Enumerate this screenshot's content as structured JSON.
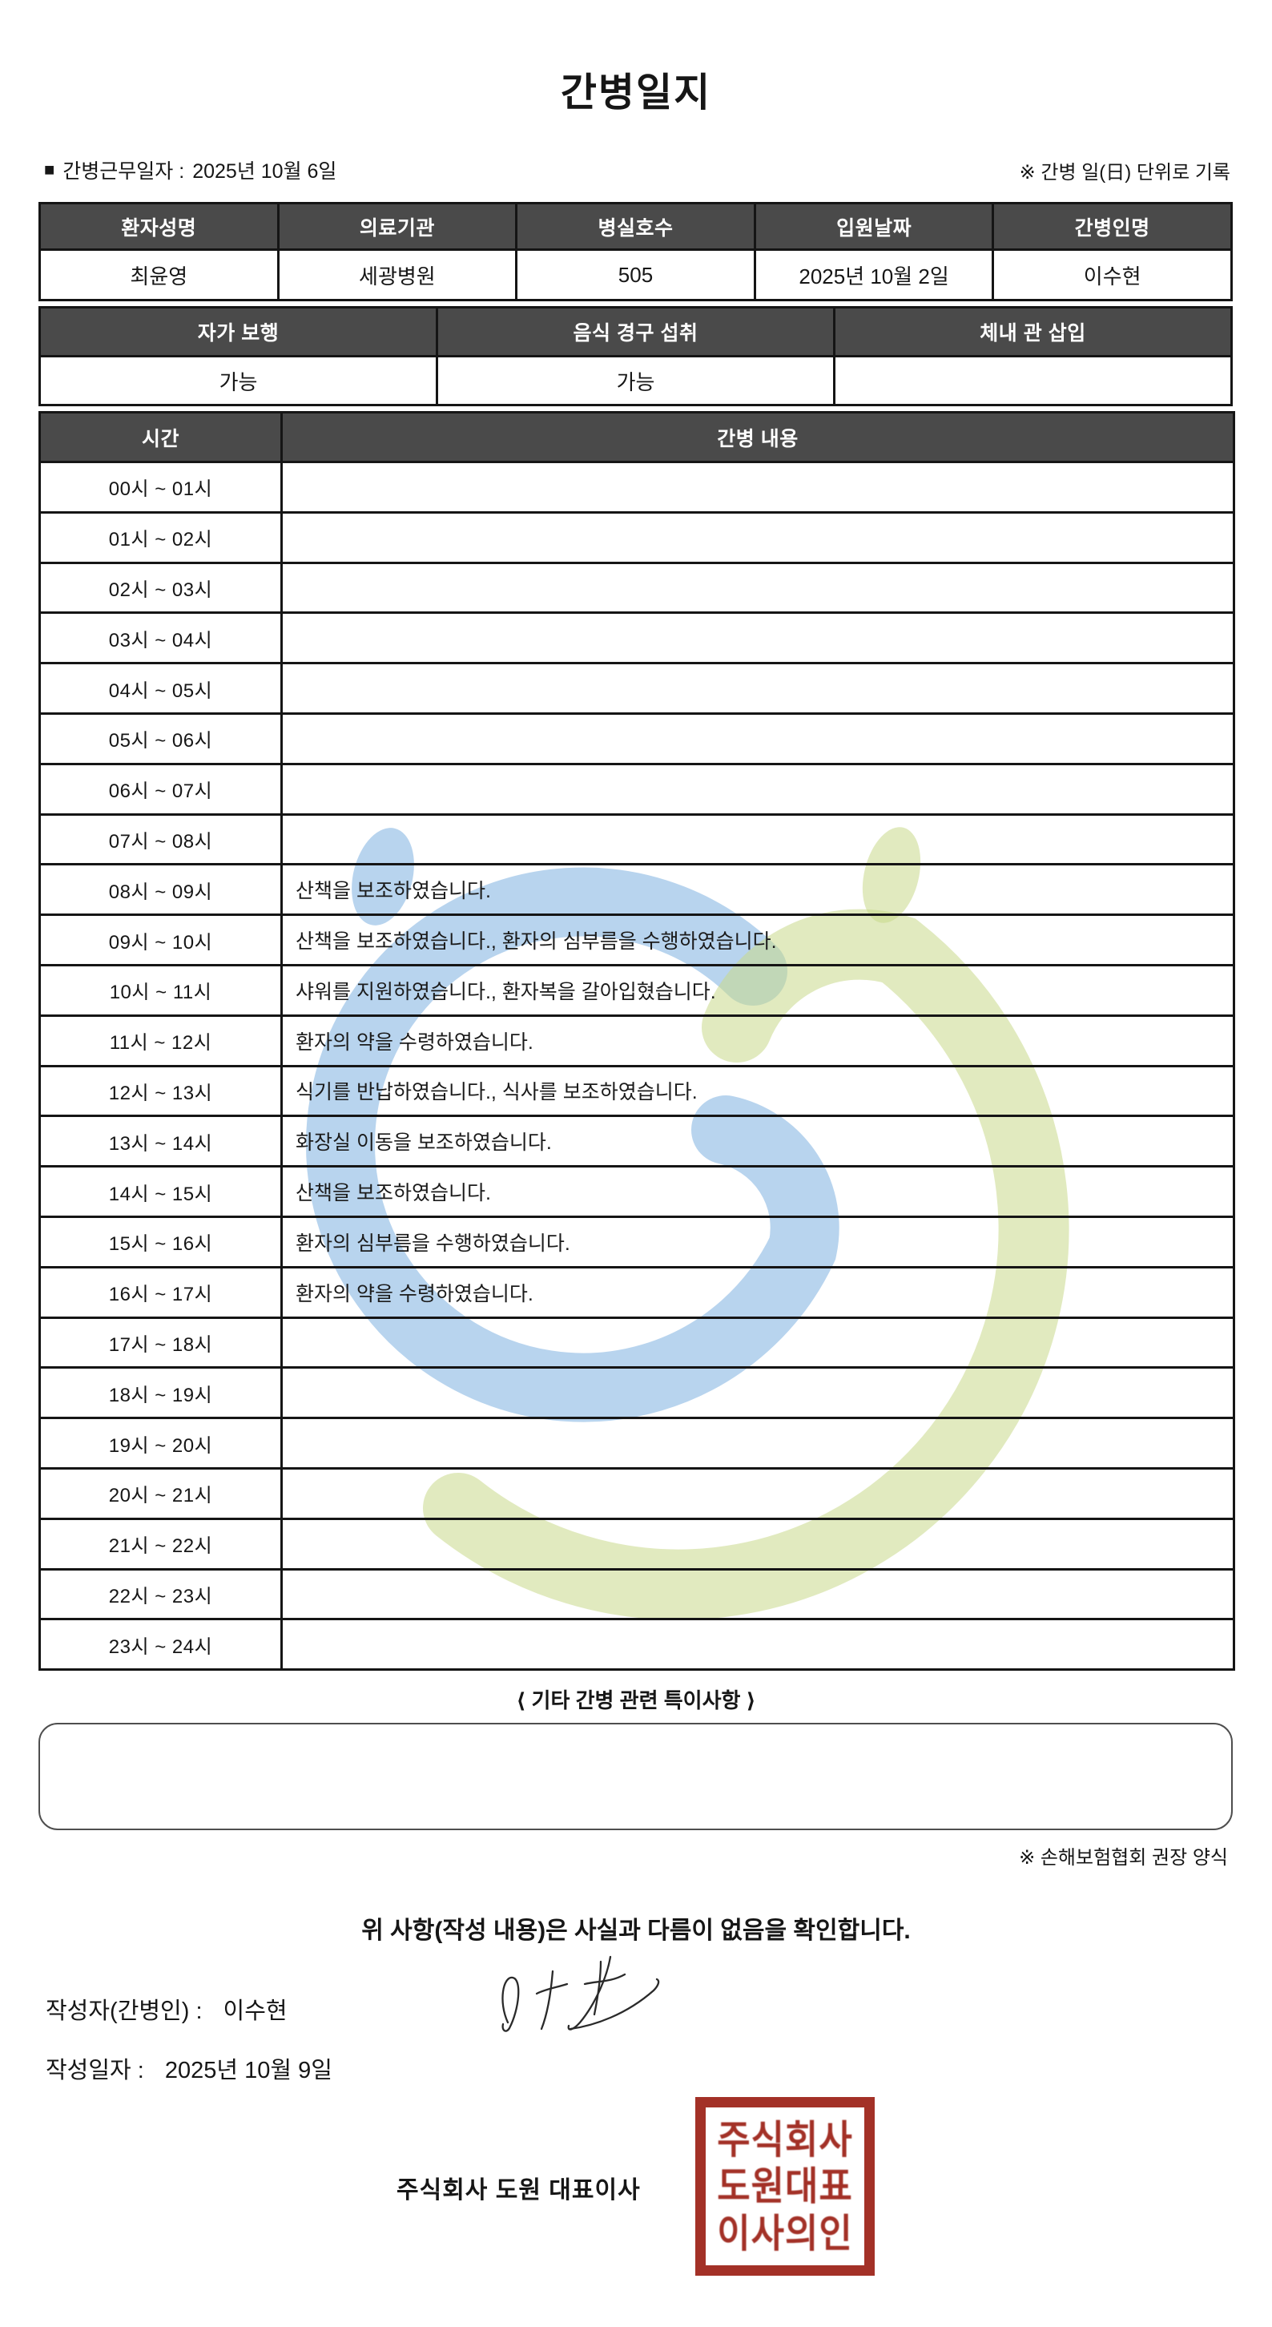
{
  "document": {
    "title": "간병일지",
    "work_date_bullet": "■",
    "work_date_label": "간병근무일자  :",
    "work_date_value": "2025년 10월 6일",
    "unit_note": "※ 간병 일(日) 단위로 기록"
  },
  "patient_table": {
    "headers": [
      "환자성명",
      "의료기관",
      "병실호수",
      "입원날짜",
      "간병인명"
    ],
    "values": [
      "최윤영",
      "세광병원",
      "505",
      "2025년 10월 2일",
      "이수현"
    ]
  },
  "status_table": {
    "headers": [
      "자가 보행",
      "음식 경구 섭취",
      "체내 관 삽입"
    ],
    "values": [
      "가능",
      "가능",
      ""
    ]
  },
  "care_table": {
    "time_header": "시간",
    "content_header": "간병 내용",
    "rows": [
      {
        "time": "00시 ~ 01시",
        "content": ""
      },
      {
        "time": "01시 ~ 02시",
        "content": ""
      },
      {
        "time": "02시 ~ 03시",
        "content": ""
      },
      {
        "time": "03시 ~ 04시",
        "content": ""
      },
      {
        "time": "04시 ~ 05시",
        "content": ""
      },
      {
        "time": "05시 ~ 06시",
        "content": ""
      },
      {
        "time": "06시 ~ 07시",
        "content": ""
      },
      {
        "time": "07시 ~ 08시",
        "content": ""
      },
      {
        "time": "08시 ~ 09시",
        "content": "산책을 보조하였습니다."
      },
      {
        "time": "09시 ~ 10시",
        "content": "산책을 보조하였습니다., 환자의 심부름을 수행하였습니다."
      },
      {
        "time": "10시 ~ 11시",
        "content": "샤워를 지원하였습니다., 환자복을 갈아입혔습니다."
      },
      {
        "time": "11시 ~ 12시",
        "content": "환자의 약을 수령하였습니다."
      },
      {
        "time": "12시 ~ 13시",
        "content": "식기를 반납하였습니다., 식사를 보조하였습니다."
      },
      {
        "time": "13시 ~ 14시",
        "content": "화장실 이동을 보조하였습니다."
      },
      {
        "time": "14시 ~ 15시",
        "content": "산책을 보조하였습니다."
      },
      {
        "time": "15시 ~ 16시",
        "content": "환자의 심부름을 수행하였습니다."
      },
      {
        "time": "16시 ~ 17시",
        "content": "환자의 약을 수령하였습니다."
      },
      {
        "time": "17시 ~ 18시",
        "content": ""
      },
      {
        "time": "18시 ~ 19시",
        "content": ""
      },
      {
        "time": "19시 ~ 20시",
        "content": ""
      },
      {
        "time": "20시 ~ 21시",
        "content": ""
      },
      {
        "time": "21시 ~ 22시",
        "content": ""
      },
      {
        "time": "22시 ~ 23시",
        "content": ""
      },
      {
        "time": "23시 ~ 24시",
        "content": ""
      }
    ]
  },
  "notes": {
    "heading": "⟨ 기타 간병 관련 특이사항 ⟩",
    "content": "",
    "form_note": "※ 손해보험협회 권장 양식"
  },
  "footer": {
    "confirmation": "위 사항(작성 내용)은 사실과 다름이 없음을 확인합니다.",
    "writer_label": "작성자(간병인) :",
    "writer_name": "이수현",
    "date_label": "작성일자 :",
    "written_date": "2025년 10월 9일",
    "company_line": "주식회사 도원    대표이사",
    "stamp_lines": [
      "주식회사",
      "도원대표",
      "이사의인"
    ]
  },
  "colors": {
    "header_bg": "#4a4a4a",
    "table_border": "#151515",
    "stamp_red": "#a33127",
    "watermark_blue": "#6ba5db",
    "watermark_green": "#c9d98b"
  }
}
